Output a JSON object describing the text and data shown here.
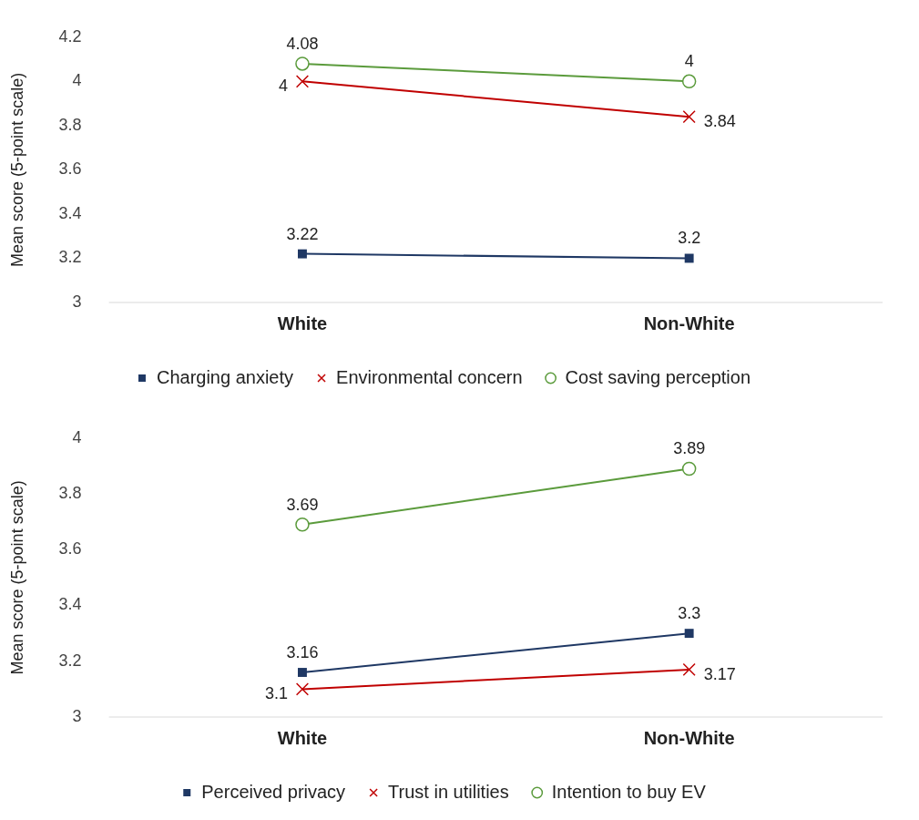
{
  "chart_data": [
    {
      "type": "line",
      "ylabel": "Mean score (5-point scale)",
      "categories": [
        "White",
        "Non-White"
      ],
      "ylim": [
        3,
        4.2
      ],
      "yticks": [
        3,
        3.2,
        3.4,
        3.6,
        3.8,
        4,
        4.2
      ],
      "grid": false,
      "legend": "bottom",
      "data_labels": true,
      "series": [
        {
          "name": "Charging anxiety",
          "color": "#1f3864",
          "marker": "square",
          "values": [
            3.22,
            3.2
          ]
        },
        {
          "name": "Environmental concern",
          "color": "#c00000",
          "marker": "cross",
          "values": [
            4,
            3.84
          ]
        },
        {
          "name": "Cost saving perception",
          "color": "#5b9b3c",
          "marker": "circle",
          "values": [
            4.08,
            4
          ]
        }
      ]
    },
    {
      "type": "line",
      "ylabel": "Mean score (5-point scale)",
      "categories": [
        "White",
        "Non-White"
      ],
      "ylim": [
        3,
        4
      ],
      "yticks": [
        3,
        3.2,
        3.4,
        3.6,
        3.8,
        4
      ],
      "grid": false,
      "legend": "bottom",
      "data_labels": true,
      "series": [
        {
          "name": "Perceived privacy",
          "color": "#1f3864",
          "marker": "square",
          "values": [
            3.16,
            3.3
          ]
        },
        {
          "name": "Trust in utilities",
          "color": "#c00000",
          "marker": "cross",
          "values": [
            3.1,
            3.17
          ]
        },
        {
          "name": "Intention to buy EV",
          "color": "#5b9b3c",
          "marker": "circle",
          "values": [
            3.69,
            3.89
          ]
        }
      ]
    }
  ]
}
